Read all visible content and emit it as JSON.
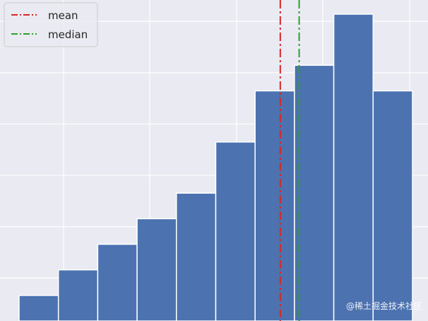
{
  "chart_data": {
    "type": "bar",
    "subtype": "histogram",
    "values": [
      1,
      2,
      3,
      4,
      5,
      7,
      9,
      10,
      12,
      9
    ],
    "ylim": [
      0,
      12.5
    ],
    "bar_color": "#4c72b0",
    "background_color": "#eaeaf2",
    "grid": true,
    "legend_position": "top-left",
    "reference_lines": [
      {
        "name": "mean",
        "color": "#d62728",
        "style": "dash-dot",
        "bin_position": 6.64
      },
      {
        "name": "median",
        "color": "#2ca02c",
        "style": "dash-dot",
        "bin_position": 7.12
      }
    ],
    "title": "",
    "xlabel": "",
    "ylabel": ""
  },
  "watermark": "@稀土掘金技术社区"
}
